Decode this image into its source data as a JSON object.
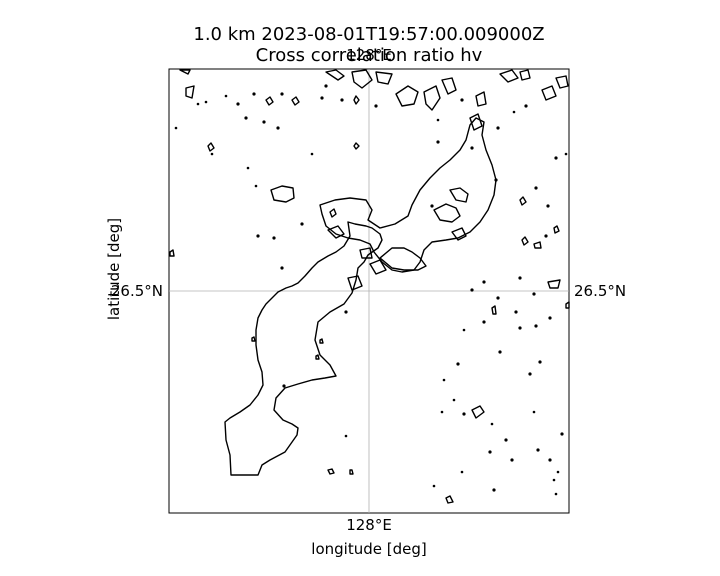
{
  "title": {
    "line1": "1.0 km 2023-08-01T19:57:00.009000Z",
    "line2": "Cross correlation ratio hv"
  },
  "axes": {
    "xlabel": "longitude [deg]",
    "ylabel": "latitude [deg]",
    "x_ticks": [
      "128°E",
      "128°E"
    ],
    "y_ticks": [
      "26.5°N",
      "26.5°N"
    ],
    "grid": true
  },
  "colors": {
    "frame": "#000000",
    "grid": "#b0b0b0",
    "contour": "#000000",
    "background": "#ffffff"
  }
}
